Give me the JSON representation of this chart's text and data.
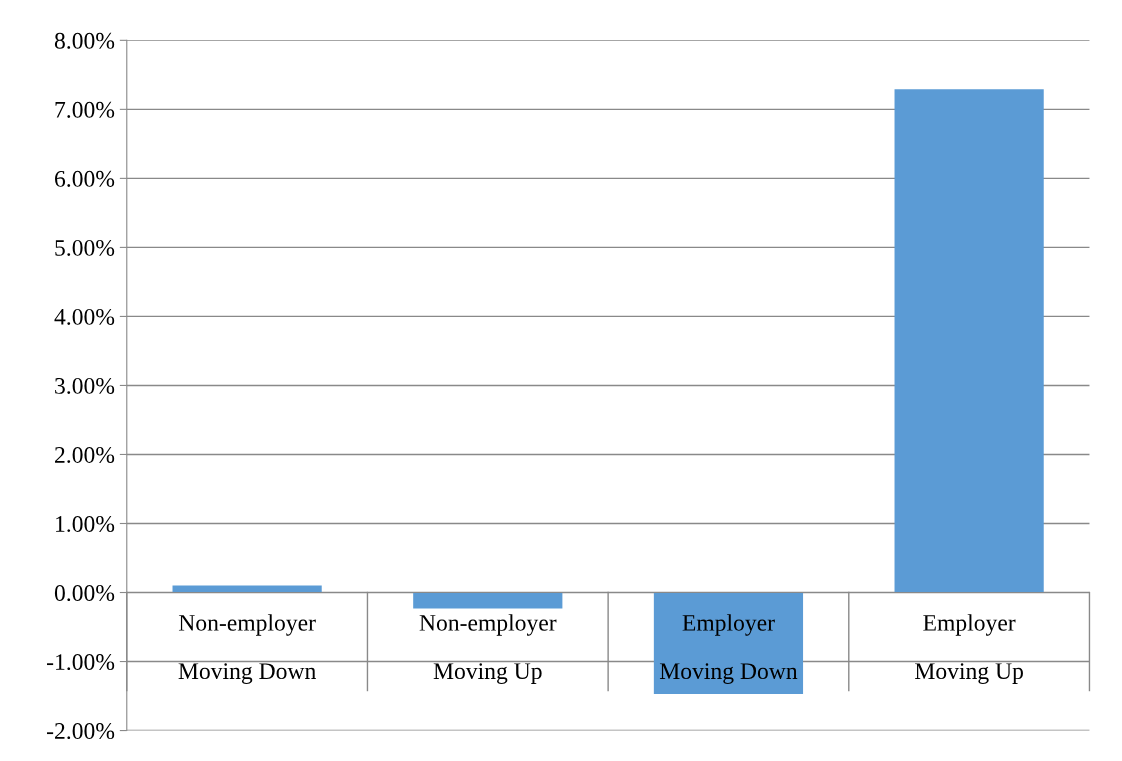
{
  "chart_data": {
    "type": "bar",
    "categories": [
      "Non-employer\nMoving Down",
      "Non-employer\nMoving Up",
      "Employer\nMoving Down",
      "Employer\nMoving Up"
    ],
    "values": [
      0.1,
      -0.23,
      -1.47,
      7.29
    ],
    "color": "#5b9bd5",
    "ylim": [
      -2,
      8
    ],
    "yticks": [
      {
        "value": -2,
        "label": "-2.00%"
      },
      {
        "value": -1,
        "label": "-1.00%"
      },
      {
        "value": 0,
        "label": "0.00%"
      },
      {
        "value": 1,
        "label": "1.00%"
      },
      {
        "value": 2,
        "label": "2.00%"
      },
      {
        "value": 3,
        "label": "3.00%"
      },
      {
        "value": 4,
        "label": "4.00%"
      },
      {
        "value": 5,
        "label": "5.00%"
      },
      {
        "value": 6,
        "label": "6.00%"
      },
      {
        "value": 7,
        "label": "7.00%"
      },
      {
        "value": 8,
        "label": "8.00%"
      }
    ],
    "grid": "y"
  }
}
